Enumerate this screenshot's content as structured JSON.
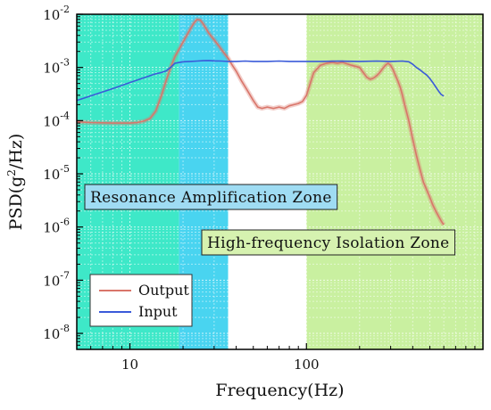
{
  "chart_data": {
    "type": "line",
    "title": "",
    "xlabel": "Frequency(Hz)",
    "ylabel_prefix": "PSD(g",
    "ylabel_sup": "2",
    "ylabel_suffix": "/Hz)",
    "x_scale": "log",
    "y_scale": "log",
    "xlim": [
      5,
      1000
    ],
    "ylim": [
      5e-09,
      0.01
    ],
    "x_ticks": [
      10,
      100
    ],
    "x_tick_labels": [
      "10",
      "100"
    ],
    "y_ticks": [
      1e-08,
      1e-07,
      1e-06,
      1e-05,
      0.0001,
      0.001,
      0.01
    ],
    "y_tick_exponents": [
      "-8",
      "-7",
      "-6",
      "-5",
      "-4",
      "-3",
      "-2"
    ],
    "y_tick_base": "10",
    "grid": true,
    "legend": {
      "placement": "lower-left",
      "entries": [
        {
          "label": "Output",
          "color": "#d9756a"
        },
        {
          "label": "Input",
          "color": "#3a5ad9"
        }
      ]
    },
    "zones": [
      {
        "label": "",
        "x_range": [
          5,
          19
        ],
        "color": "#3ee8c8"
      },
      {
        "label": "Resonance Amplification Zone",
        "x_range": [
          19,
          36
        ],
        "color": "#49d4f0"
      },
      {
        "label": "",
        "x_range": [
          36,
          100
        ],
        "color": "#ffffff"
      },
      {
        "label": "High-frequency Isolation Zone",
        "x_range": [
          100,
          1000
        ],
        "color": "#c9f0a0"
      }
    ],
    "zone_label_colors": {
      "resonance": "#9fdcf3",
      "isolation": "#d6f2b0"
    },
    "series": [
      {
        "name": "Output",
        "color": "#d9756a",
        "x": [
          5,
          6,
          8,
          10,
          11,
          12,
          13,
          14,
          15,
          16,
          17,
          18,
          19,
          20,
          21,
          22,
          23,
          24,
          25,
          26,
          27,
          28,
          30,
          32,
          34,
          36,
          38,
          40,
          43,
          46,
          50,
          53,
          56,
          60,
          65,
          70,
          75,
          80,
          85,
          90,
          95,
          100,
          105,
          110,
          120,
          130,
          140,
          150,
          160,
          180,
          200,
          210,
          220,
          230,
          240,
          250,
          260,
          270,
          280,
          290,
          300,
          310,
          320,
          330,
          340,
          350,
          360,
          380,
          400,
          420,
          440,
          460,
          480,
          500,
          520,
          540,
          560,
          580,
          600
        ],
        "y": [
          9.5e-05,
          9.2e-05,
          9e-05,
          9e-05,
          9.2e-05,
          9.8e-05,
          0.00011,
          0.00015,
          0.00028,
          0.00055,
          0.001,
          0.0016,
          0.0022,
          0.003,
          0.004,
          0.0053,
          0.0068,
          0.008,
          0.0078,
          0.0066,
          0.0054,
          0.0044,
          0.0033,
          0.0025,
          0.0019,
          0.0015,
          0.0011,
          0.00085,
          0.00055,
          0.00038,
          0.00024,
          0.00018,
          0.00017,
          0.00018,
          0.00017,
          0.00018,
          0.00017,
          0.00019,
          0.0002,
          0.00021,
          0.00023,
          0.0003,
          0.0005,
          0.0008,
          0.0011,
          0.0012,
          0.00125,
          0.0012,
          0.00125,
          0.0011,
          0.001,
          0.0008,
          0.00065,
          0.0006,
          0.00063,
          0.0007,
          0.0008,
          0.00095,
          0.0011,
          0.0012,
          0.0011,
          0.0009,
          0.0007,
          0.00055,
          0.00042,
          0.0003,
          0.0002,
          0.0001,
          4.5e-05,
          2.2e-05,
          1.2e-05,
          7e-06,
          5e-06,
          3.6e-06,
          2.6e-06,
          2e-06,
          1.6e-06,
          1.3e-06,
          1.1e-06
        ]
      },
      {
        "name": "Input",
        "color": "#3a5ad9",
        "x": [
          5,
          8,
          10,
          12,
          14,
          15,
          16,
          17,
          18,
          20,
          22,
          24,
          26,
          28,
          30,
          33,
          36,
          40,
          45,
          50,
          60,
          70,
          80,
          100,
          120,
          150,
          200,
          250,
          300,
          350,
          380,
          400,
          420,
          440,
          460,
          480,
          500,
          520,
          540,
          560,
          580,
          600
        ],
        "y": [
          0.00024,
          0.0004,
          0.00052,
          0.00064,
          0.00076,
          0.0008,
          0.00086,
          0.001,
          0.0012,
          0.00128,
          0.0013,
          0.00132,
          0.00134,
          0.00135,
          0.00133,
          0.00132,
          0.0013,
          0.0013,
          0.00132,
          0.0013,
          0.0013,
          0.00132,
          0.0013,
          0.0013,
          0.0013,
          0.00132,
          0.0013,
          0.00132,
          0.0013,
          0.00132,
          0.00128,
          0.00115,
          0.001,
          0.0009,
          0.0008,
          0.00072,
          0.00062,
          0.00052,
          0.00043,
          0.00036,
          0.00031,
          0.00029
        ]
      }
    ]
  }
}
